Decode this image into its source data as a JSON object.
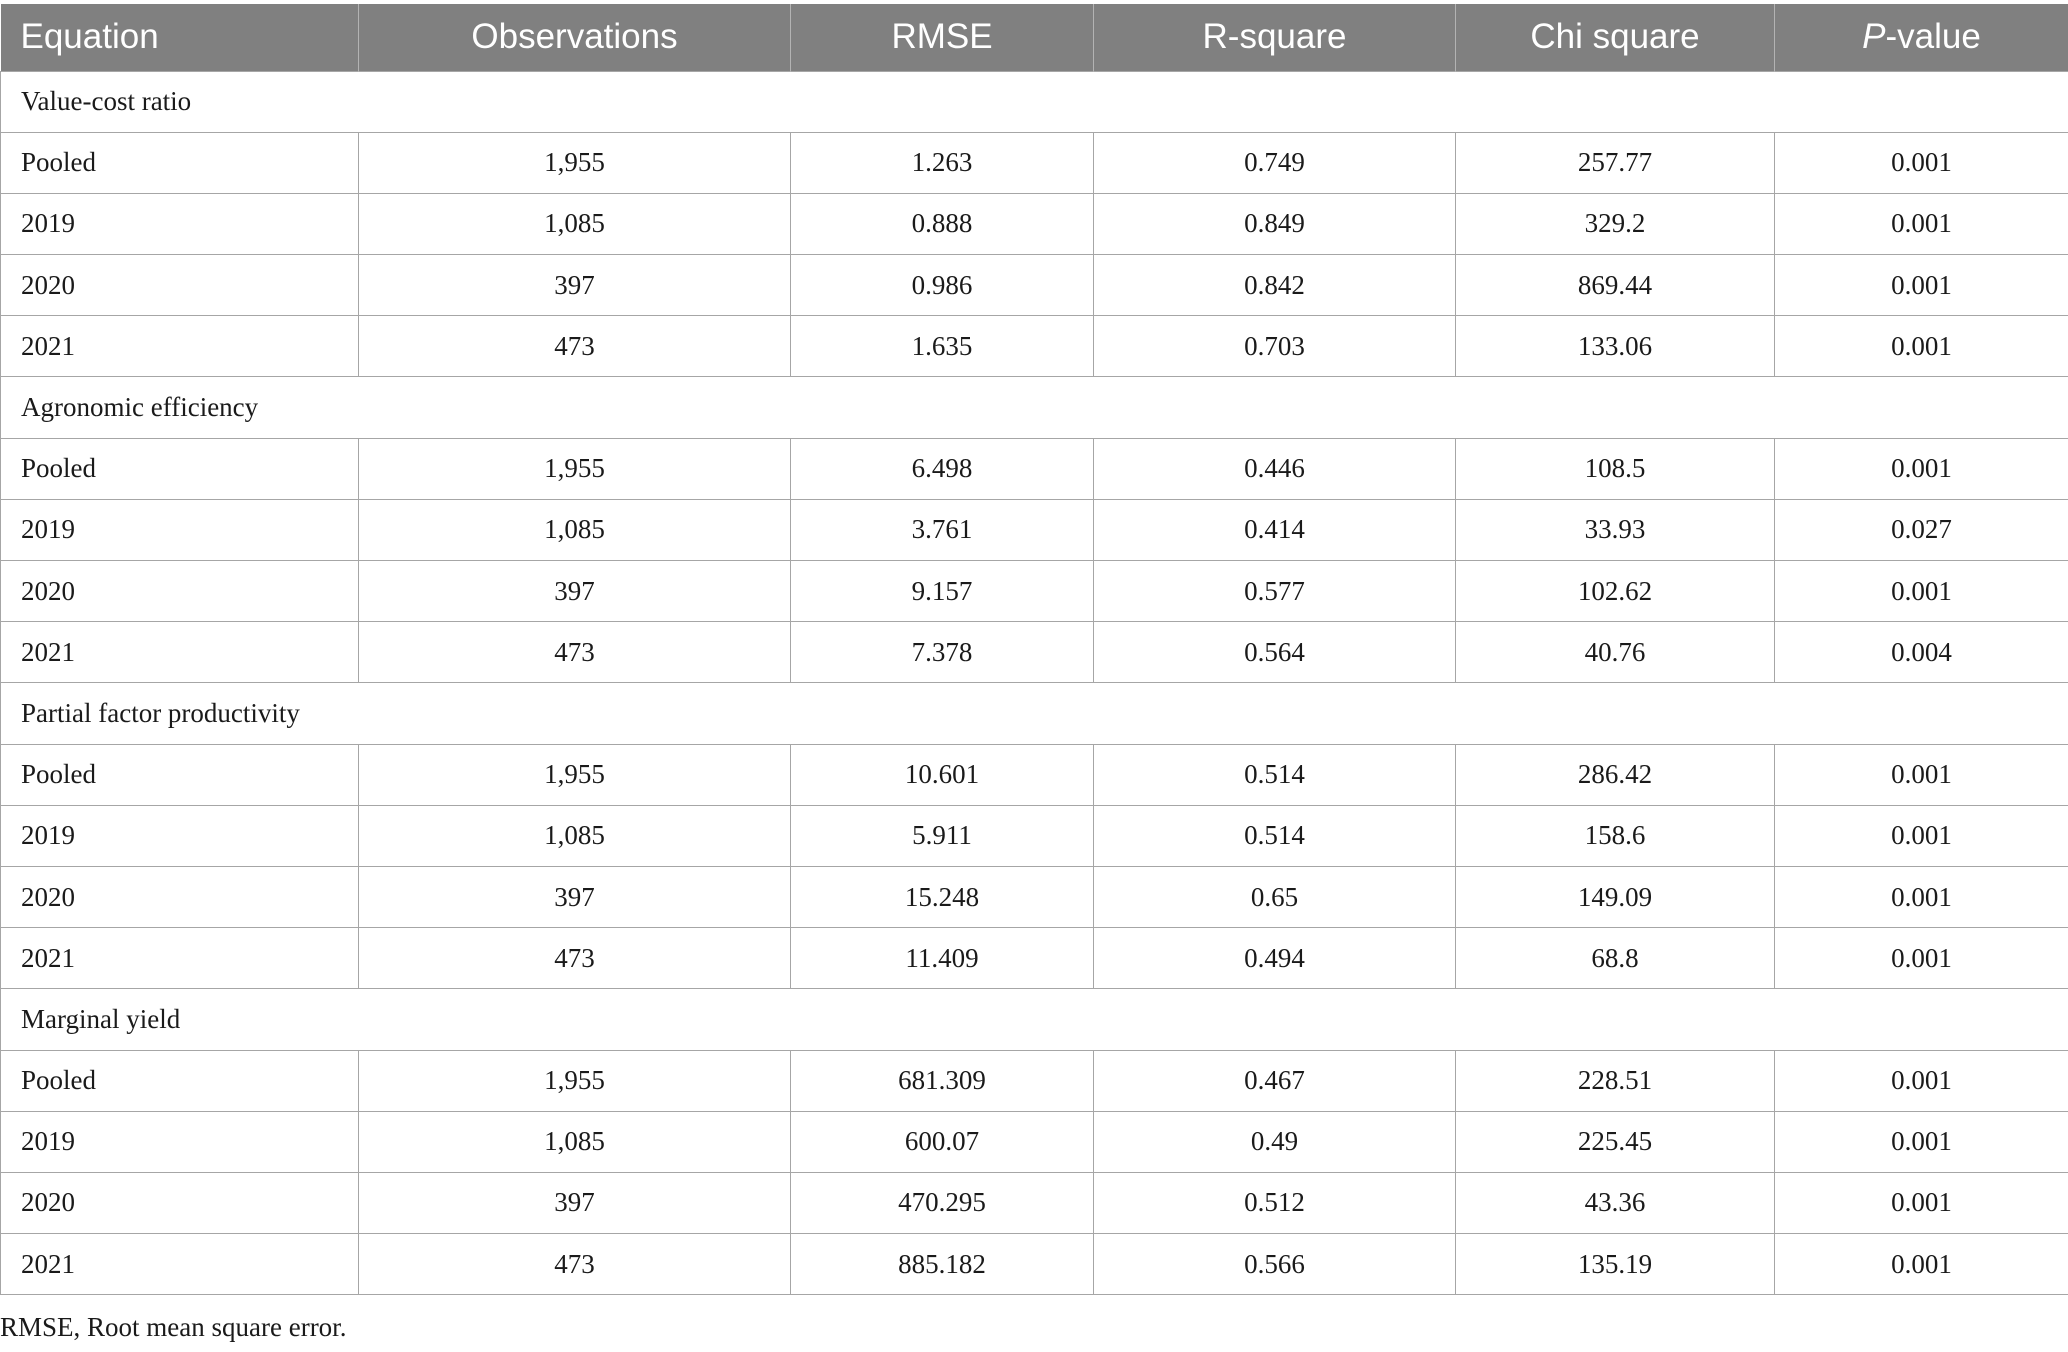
{
  "table": {
    "headers": {
      "equation": "Equation",
      "observations": "Observations",
      "rmse": "RMSE",
      "r_square": "R-square",
      "chi_square": "Chi square",
      "p_value_italic": "P",
      "p_value_rest": "-value"
    },
    "sections": [
      {
        "title": "Value-cost ratio",
        "rows": [
          {
            "label": "Pooled",
            "observations": "1,955",
            "rmse": "1.263",
            "r_square": "0.749",
            "chi_square": "257.77",
            "p_value": "0.001"
          },
          {
            "label": "2019",
            "observations": "1,085",
            "rmse": "0.888",
            "r_square": "0.849",
            "chi_square": "329.2",
            "p_value": "0.001"
          },
          {
            "label": "2020",
            "observations": "397",
            "rmse": "0.986",
            "r_square": "0.842",
            "chi_square": "869.44",
            "p_value": "0.001"
          },
          {
            "label": "2021",
            "observations": "473",
            "rmse": "1.635",
            "r_square": "0.703",
            "chi_square": "133.06",
            "p_value": "0.001"
          }
        ]
      },
      {
        "title": "Agronomic efficiency",
        "rows": [
          {
            "label": "Pooled",
            "observations": "1,955",
            "rmse": "6.498",
            "r_square": "0.446",
            "chi_square": "108.5",
            "p_value": "0.001"
          },
          {
            "label": "2019",
            "observations": "1,085",
            "rmse": "3.761",
            "r_square": "0.414",
            "chi_square": "33.93",
            "p_value": "0.027"
          },
          {
            "label": "2020",
            "observations": "397",
            "rmse": "9.157",
            "r_square": "0.577",
            "chi_square": "102.62",
            "p_value": "0.001"
          },
          {
            "label": "2021",
            "observations": "473",
            "rmse": "7.378",
            "r_square": "0.564",
            "chi_square": "40.76",
            "p_value": "0.004"
          }
        ]
      },
      {
        "title": "Partial factor productivity",
        "rows": [
          {
            "label": "Pooled",
            "observations": "1,955",
            "rmse": "10.601",
            "r_square": "0.514",
            "chi_square": "286.42",
            "p_value": "0.001"
          },
          {
            "label": "2019",
            "observations": "1,085",
            "rmse": "5.911",
            "r_square": "0.514",
            "chi_square": "158.6",
            "p_value": "0.001"
          },
          {
            "label": "2020",
            "observations": "397",
            "rmse": "15.248",
            "r_square": "0.65",
            "chi_square": "149.09",
            "p_value": "0.001"
          },
          {
            "label": "2021",
            "observations": "473",
            "rmse": "11.409",
            "r_square": "0.494",
            "chi_square": "68.8",
            "p_value": "0.001"
          }
        ]
      },
      {
        "title": "Marginal yield",
        "rows": [
          {
            "label": "Pooled",
            "observations": "1,955",
            "rmse": "681.309",
            "r_square": "0.467",
            "chi_square": "228.51",
            "p_value": "0.001"
          },
          {
            "label": "2019",
            "observations": "1,085",
            "rmse": "600.07",
            "r_square": "0.49",
            "chi_square": "225.45",
            "p_value": "0.001"
          },
          {
            "label": "2020",
            "observations": "397",
            "rmse": "470.295",
            "r_square": "0.512",
            "chi_square": "43.36",
            "p_value": "0.001"
          },
          {
            "label": "2021",
            "observations": "473",
            "rmse": "885.182",
            "r_square": "0.566",
            "chi_square": "135.19",
            "p_value": "0.001"
          }
        ]
      }
    ]
  },
  "footnote": "RMSE, Root mean square error.",
  "colors": {
    "header_background": "#808080",
    "header_text": "#ffffff",
    "border": "#a6a6a6"
  }
}
